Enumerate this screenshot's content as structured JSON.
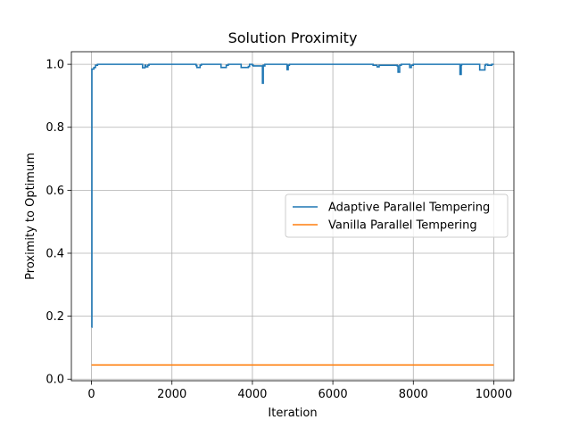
{
  "chart_data": {
    "type": "line",
    "title": "Solution Proximity",
    "xlabel": "Iteration",
    "ylabel": "Proximity to Optimum",
    "xlim": [
      -500,
      10500
    ],
    "ylim": [
      -0.005,
      1.04
    ],
    "xticks": [
      0,
      2000,
      4000,
      6000,
      8000,
      10000
    ],
    "xtick_labels": [
      "0",
      "2000",
      "4000",
      "6000",
      "8000",
      "10000"
    ],
    "yticks": [
      0.0,
      0.2,
      0.4,
      0.6,
      0.8,
      1.0
    ],
    "ytick_labels": [
      "0.0",
      "0.2",
      "0.4",
      "0.6",
      "0.8",
      "1.0"
    ],
    "grid": true,
    "legend_position": "center-right",
    "series": [
      {
        "name": "Adaptive Parallel Tempering",
        "color": "#1f77b4",
        "x": [
          0,
          10,
          20,
          60,
          100,
          150,
          1250,
          1270,
          1330,
          1350,
          1400,
          1430,
          1500,
          2600,
          2620,
          2700,
          2730,
          3200,
          3220,
          3350,
          3400,
          3700,
          3720,
          3900,
          3930,
          4000,
          4020,
          4200,
          4250,
          4270,
          4290,
          4310,
          4850,
          4860,
          4890,
          4920,
          5000,
          7000,
          7100,
          7150,
          7600,
          7620,
          7660,
          7700,
          7900,
          7910,
          7950,
          8000,
          8050,
          9150,
          9160,
          9190,
          9200,
          9250,
          9300,
          9640,
          9650,
          9780,
          9800,
          9850,
          9950,
          10000
        ],
        "y": [
          0.165,
          0.985,
          0.985,
          0.99,
          0.997,
          1.0,
          1.0,
          0.989,
          0.997,
          0.992,
          0.997,
          1.0,
          1.0,
          0.996,
          0.99,
          0.997,
          1.0,
          1.0,
          0.99,
          0.997,
          1.0,
          1.0,
          0.99,
          0.993,
          1.0,
          0.997,
          0.995,
          0.995,
          0.94,
          0.997,
          0.995,
          1.0,
          1.0,
          0.983,
          0.997,
          1.0,
          1.0,
          0.997,
          0.992,
          0.997,
          0.995,
          0.975,
          0.997,
          1.0,
          1.0,
          0.99,
          0.997,
          1.0,
          1.0,
          1.0,
          0.968,
          0.997,
          1.0,
          1.0,
          1.0,
          1.0,
          0.982,
          0.997,
          1.0,
          0.997,
          1.0,
          1.0
        ]
      },
      {
        "name": "Vanilla Parallel Tempering",
        "color": "#ff7f0e",
        "x": [
          0,
          10000
        ],
        "y": [
          0.045,
          0.045
        ]
      }
    ]
  }
}
